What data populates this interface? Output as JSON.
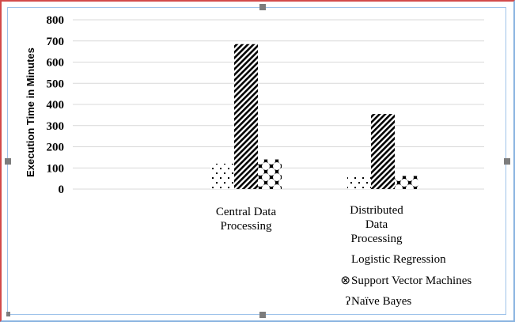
{
  "chart_data": {
    "type": "bar",
    "title": "",
    "xlabel": "",
    "ylabel": "Execution Time in Minutes",
    "ylim": [
      0,
      800
    ],
    "yticks": [
      0,
      100,
      200,
      300,
      400,
      500,
      600,
      700,
      800
    ],
    "grid": true,
    "legend_position": "bottom-right",
    "categories": [
      {
        "lines": [
          "Central Data",
          "Processing"
        ]
      },
      {
        "lines": [
          "Distributed",
          "Data",
          "Processing"
        ]
      }
    ],
    "series": [
      {
        "name": "Naïve Bayes",
        "pattern": "dots",
        "legend_marker": "ʔ",
        "values": [
          120,
          60
        ]
      },
      {
        "name": "Logistic Regression",
        "pattern": "diagonal-stripes",
        "legend_marker": "",
        "values": [
          685,
          355
        ]
      },
      {
        "name": "Support Vector Machines",
        "pattern": "circles",
        "legend_marker": "⊗",
        "values": [
          140,
          62
        ]
      }
    ],
    "legend_order": [
      1,
      2,
      0
    ]
  }
}
